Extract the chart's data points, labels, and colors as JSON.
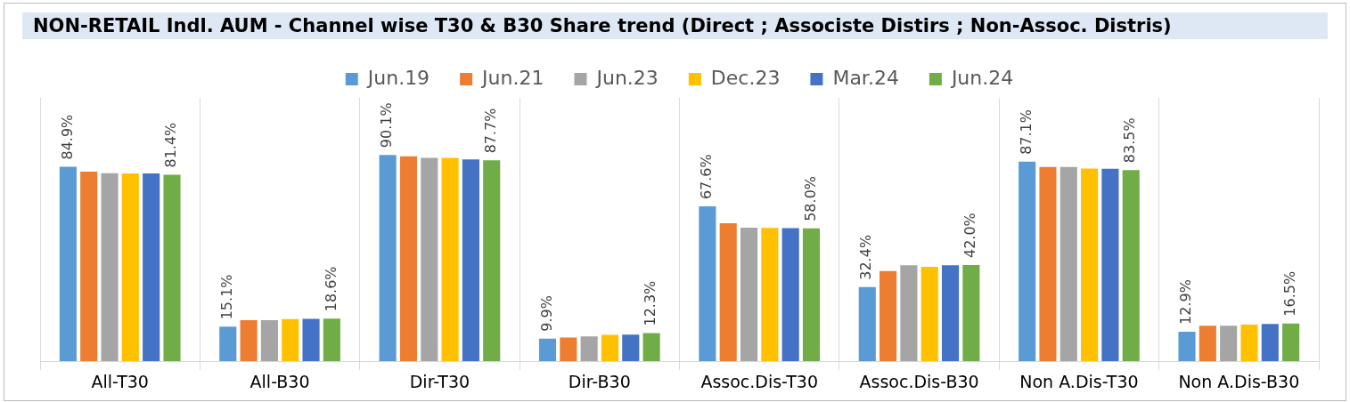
{
  "chart_data": {
    "type": "bar",
    "title": "NON-RETAIL Indl. AUM - Channel wise T30 & B30 Share trend (Direct ; Associste Distirs ; Non-Assoc. Distris)",
    "categories": [
      "All-T30",
      "All-B30",
      "Dir-T30",
      "Dir-B30",
      "Assoc.Dis-T30",
      "Assoc.Dis-B30",
      "Non A.Dis-T30",
      "Non A.Dis-B30"
    ],
    "series": [
      {
        "name": "Jun.19",
        "color": "#5b9bd5",
        "values": [
          84.9,
          15.1,
          90.1,
          9.9,
          67.6,
          32.4,
          87.1,
          12.9
        ],
        "value_labels": [
          "84.9%",
          "15.1%",
          "90.1%",
          "9.9%",
          "67.6%",
          "32.4%",
          "87.1%",
          "12.9%"
        ]
      },
      {
        "name": "Jun.21",
        "color": "#ed7d31",
        "values": [
          82.8,
          17.9,
          89.5,
          10.4,
          60.3,
          39.4,
          84.8,
          15.5
        ]
      },
      {
        "name": "Jun.23",
        "color": "#a5a5a5",
        "values": [
          82.1,
          17.9,
          88.8,
          10.9,
          58.3,
          41.9,
          84.8,
          15.5
        ]
      },
      {
        "name": "Dec.23",
        "color": "#ffc000",
        "values": [
          82.0,
          18.4,
          88.8,
          11.5,
          58.2,
          41.2,
          84.1,
          16.0
        ]
      },
      {
        "name": "Mar.24",
        "color": "#4472c4",
        "values": [
          82.0,
          18.5,
          88.1,
          11.6,
          58.1,
          41.9,
          84.0,
          16.3
        ]
      },
      {
        "name": "Jun.24",
        "color": "#70ad47",
        "values": [
          81.4,
          18.6,
          87.7,
          12.3,
          58.0,
          42.0,
          83.5,
          16.5
        ],
        "value_labels": [
          "81.4%",
          "18.6%",
          "87.7%",
          "12.3%",
          "58.0%",
          "42.0%",
          "83.5%",
          "16.5%"
        ]
      }
    ],
    "ylim": [
      0,
      115
    ],
    "tick_labels": "x",
    "grid": "x",
    "legend": "top"
  }
}
